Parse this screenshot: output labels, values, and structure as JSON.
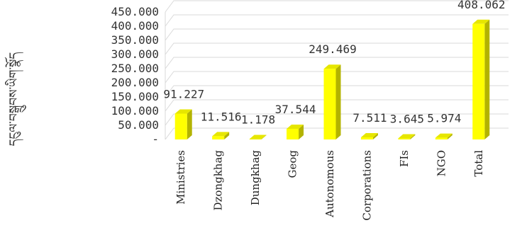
{
  "chart_data": {
    "type": "bar",
    "ylabel": "དངུལ་བསྒྲུབས་ཡིག་སྣོད",
    "categories": [
      "Ministries",
      "Dzongkhag",
      "Dungkhag",
      "Geog",
      "Autonomous",
      "Corporations",
      "FIs",
      "NGO",
      "Total"
    ],
    "values": [
      91.227,
      11.516,
      1.178,
      37.544,
      249.469,
      7.511,
      3.645,
      5.974,
      408.062
    ],
    "data_labels": [
      "91.227",
      "11.516",
      "1.178",
      "37.544",
      "249.469",
      "7.511",
      "3.645",
      "5.974",
      "408.062"
    ],
    "ylim": [
      0,
      450
    ],
    "yticks": [
      {
        "value": 0,
        "label": "-"
      },
      {
        "value": 50,
        "label": "50.000"
      },
      {
        "value": 100,
        "label": "100.000"
      },
      {
        "value": 150,
        "label": "150.000"
      },
      {
        "value": 200,
        "label": "200.000"
      },
      {
        "value": 250,
        "label": "250.000"
      },
      {
        "value": 300,
        "label": "300.000"
      },
      {
        "value": 350,
        "label": "350.000"
      },
      {
        "value": 400,
        "label": "400.000"
      },
      {
        "value": 450,
        "label": "450.000"
      }
    ],
    "grid": true,
    "style": "3d",
    "colors": {
      "front": "#ffff00",
      "side": "#b3b300",
      "top": "#e6e600"
    }
  }
}
